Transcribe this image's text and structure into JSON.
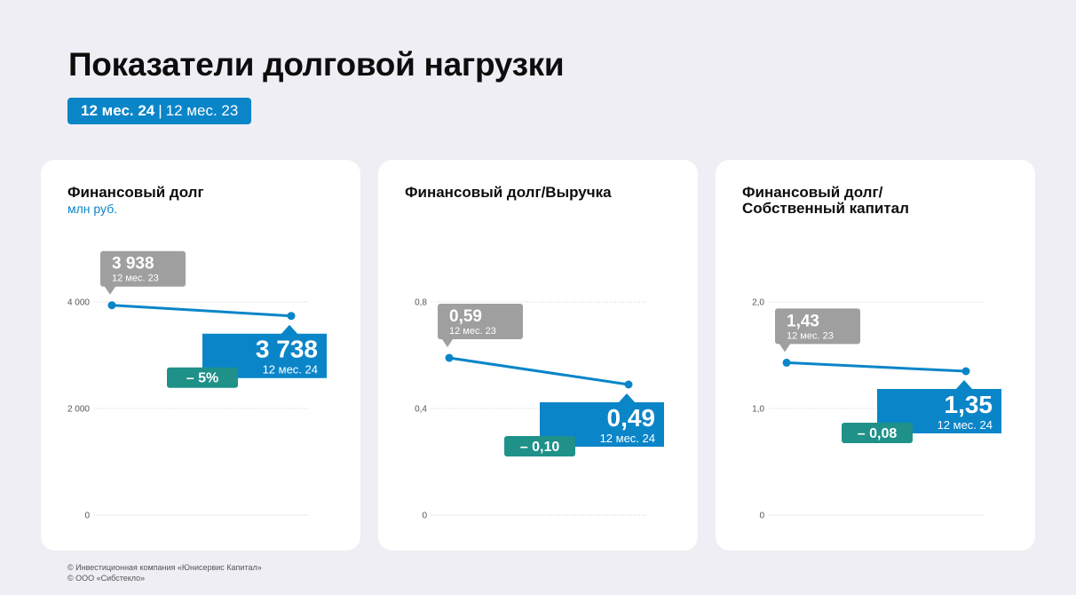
{
  "title": "Показатели долговой нагрузки",
  "period": {
    "current": "12 мес. 24",
    "separator": "|",
    "previous": "12 мес. 23"
  },
  "colors": {
    "accent": "#0a85c8",
    "gray_label": "#9f9f9f",
    "change_badge": "#1f9189",
    "background": "#efeef4",
    "card": "#ffffff",
    "grid": "#cccccc"
  },
  "footer": {
    "line1": "© Инвестиционная компания «Юнисервис Капитал»",
    "line2": "© ООО «Сибстекло»"
  },
  "chart_data": [
    {
      "type": "line",
      "title": "Финансовый долг",
      "unit": "млн руб.",
      "categories": [
        "12 мес. 23",
        "12 мес. 24"
      ],
      "values": [
        3938,
        3738
      ],
      "ylim": [
        0,
        4000
      ],
      "yticks": [
        0,
        2000,
        4000
      ],
      "ytick_labels": [
        "0",
        "2 000",
        "4 000"
      ],
      "grid": true,
      "prev_label": {
        "value": "3 938",
        "period": "12 мес. 23"
      },
      "curr_label": {
        "value": "3 738",
        "period": "12 мес. 24"
      },
      "change": "– 5%"
    },
    {
      "type": "line",
      "title": "Финансовый долг/Выручка",
      "unit": "",
      "categories": [
        "12 мес. 23",
        "12 мес. 24"
      ],
      "values": [
        0.59,
        0.49
      ],
      "ylim": [
        0,
        0.8
      ],
      "yticks": [
        0,
        0.4,
        0.8
      ],
      "ytick_labels": [
        "0",
        "0,4",
        "0,8"
      ],
      "grid": true,
      "prev_label": {
        "value": "0,59",
        "period": "12 мес. 23"
      },
      "curr_label": {
        "value": "0,49",
        "period": "12 мес. 24"
      },
      "change": "– 0,10"
    },
    {
      "type": "line",
      "title": "Финансовый долг/\nСобственный капитал",
      "unit": "",
      "categories": [
        "12 мес. 23",
        "12 мес. 24"
      ],
      "values": [
        1.43,
        1.35
      ],
      "ylim": [
        0,
        2
      ],
      "yticks": [
        0,
        1,
        2
      ],
      "ytick_labels": [
        "0",
        "1,0",
        "2,0"
      ],
      "grid": true,
      "prev_label": {
        "value": "1,43",
        "period": "12 мес. 23"
      },
      "curr_label": {
        "value": "1,35",
        "period": "12 мес. 24"
      },
      "change": "– 0,08"
    }
  ]
}
